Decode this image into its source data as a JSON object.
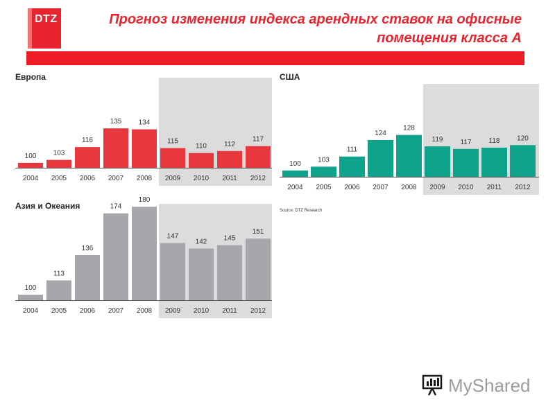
{
  "header": {
    "logo_text": "DTZ",
    "title": "Прогноз изменения индекса арендных ставок на офисные помещения класса А"
  },
  "source": "Source: DTZ Research",
  "watermark": "MyShared",
  "chart_data": [
    {
      "type": "bar",
      "title": "Европа",
      "categories": [
        "2004",
        "2005",
        "2006",
        "2007",
        "2008",
        "2009",
        "2010",
        "2011",
        "2012"
      ],
      "values": [
        100,
        103,
        116,
        135,
        134,
        115,
        110,
        112,
        117
      ],
      "color": "#e8383d",
      "forecast_from": "2009",
      "forecast_shading": "#dcdcdc"
    },
    {
      "type": "bar",
      "title": "США",
      "categories": [
        "2004",
        "2005",
        "2006",
        "2007",
        "2008",
        "2009",
        "2010",
        "2011",
        "2012"
      ],
      "values": [
        100,
        103,
        111,
        124,
        128,
        119,
        117,
        118,
        120
      ],
      "color": "#0fa38b",
      "forecast_from": "2009",
      "forecast_shading": "#dcdcdc"
    },
    {
      "type": "bar",
      "title": "Азия и Океания",
      "categories": [
        "2004",
        "2005",
        "2006",
        "2007",
        "2008",
        "2009",
        "2010",
        "2011",
        "2012"
      ],
      "values": [
        100,
        113,
        136,
        174,
        180,
        147,
        142,
        145,
        151
      ],
      "color": "#a6a7ab",
      "forecast_from": "2009",
      "forecast_shading": "#dcdcdc"
    }
  ]
}
